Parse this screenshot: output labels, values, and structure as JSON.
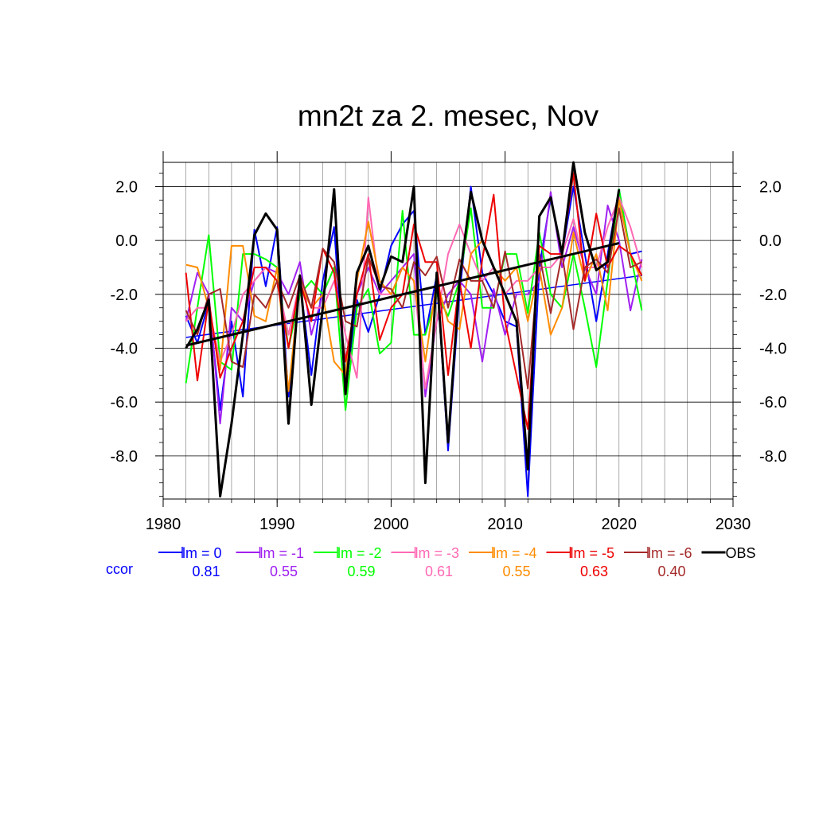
{
  "chart_data": {
    "type": "line",
    "title": "mn2t za 2. mesec, Nov",
    "xlim": [
      1980,
      2030
    ],
    "ylim": [
      -9.6,
      2.9
    ],
    "x_ticks": [
      1980,
      1990,
      2000,
      2010,
      2020,
      2030
    ],
    "x_tick_labels": [
      "1980",
      "1990",
      "2000",
      "2010",
      "2020",
      "2030"
    ],
    "y_ticks": [
      2,
      0,
      -2,
      -4,
      -6,
      -8
    ],
    "y_tick_labels": [
      "2.0",
      "0.0",
      "-2.0",
      "-4.0",
      "-6.0",
      "-8.0"
    ],
    "grid": true,
    "legend_position": "bottom",
    "ccor_label": "ccor",
    "x": [
      1982,
      1983,
      1984,
      1985,
      1986,
      1987,
      1988,
      1989,
      1990,
      1991,
      1992,
      1993,
      1994,
      1995,
      1996,
      1997,
      1998,
      1999,
      2000,
      2001,
      2002,
      2003,
      2004,
      2005,
      2006,
      2007,
      2008,
      2009,
      2010,
      2011,
      2012,
      2013,
      2014,
      2015,
      2016,
      2017,
      2018,
      2019,
      2020,
      2021,
      2022
    ],
    "series": [
      {
        "name": "lm = 0",
        "color": "#0000ff",
        "ccor": "0.81",
        "values": [
          -2.8,
          -3.8,
          -2.3,
          -6.3,
          -3.0,
          -5.8,
          0.4,
          -1.7,
          0.5,
          -5.8,
          -1.5,
          -5.0,
          -1.5,
          0.5,
          -5.6,
          -2.2,
          -3.4,
          -2.0,
          -0.2,
          0.6,
          1.1,
          -3.5,
          -1.3,
          -7.8,
          -2.0,
          2.0,
          -1.2,
          -2.0,
          -3.0,
          -3.2,
          -9.5,
          -1.0,
          1.6,
          -0.5,
          2.0,
          -0.5,
          -3.0,
          -0.5,
          1.9,
          -0.5,
          -0.4
        ],
        "trend": [
          -3.6,
          -1.3
        ]
      },
      {
        "name": "lm = -1",
        "color": "#a020f0",
        "ccor": "0.55",
        "values": [
          -3.0,
          -1.2,
          -2.0,
          -6.8,
          -2.5,
          -3.0,
          -1.5,
          -1.0,
          -1.2,
          -2.0,
          -0.8,
          -3.5,
          -2.0,
          -1.0,
          -4.5,
          -2.0,
          -1.0,
          -2.0,
          -1.5,
          -1.0,
          -0.5,
          -5.8,
          -3.0,
          -2.0,
          -1.5,
          -2.0,
          -4.5,
          -1.8,
          -3.5,
          -2.0,
          -2.0,
          -1.5,
          1.8,
          -1.0,
          0.5,
          -1.0,
          -2.0,
          1.3,
          0.0,
          -2.6,
          -0.7
        ]
      },
      {
        "name": "lm = -2",
        "color": "#00ff00",
        "ccor": "0.59",
        "values": [
          -5.3,
          -2.5,
          0.2,
          -4.5,
          -4.8,
          -0.5,
          -0.5,
          -0.7,
          -1.0,
          -4.0,
          -2.0,
          -1.5,
          -2.0,
          -1.0,
          -6.3,
          -2.5,
          -1.8,
          -4.2,
          -3.8,
          1.1,
          -3.5,
          -3.5,
          -2.0,
          -2.8,
          -1.5,
          1.2,
          -2.5,
          -2.5,
          -0.5,
          -0.5,
          -2.7,
          0.3,
          -2.0,
          -2.5,
          -0.5,
          -2.5,
          -4.7,
          -1.5,
          1.9,
          -0.5,
          -2.6
        ]
      },
      {
        "name": "lm = -3",
        "color": "#ff69b4",
        "ccor": "0.61",
        "values": [
          -3.0,
          -2.5,
          -2.5,
          -4.5,
          -3.5,
          -2.0,
          -1.5,
          -1.0,
          -1.5,
          -3.5,
          -1.5,
          -2.5,
          -2.5,
          -1.5,
          -3.5,
          -5.1,
          1.6,
          -2.0,
          -2.0,
          -1.0,
          -1.5,
          -5.5,
          -3.0,
          -0.5,
          0.6,
          -0.5,
          -1.5,
          -1.0,
          -2.0,
          -1.5,
          -1.5,
          -1.0,
          -1.0,
          -0.5,
          0.8,
          -1.0,
          -1.0,
          0.5,
          1.6,
          0.5,
          -1.0
        ]
      },
      {
        "name": "lm = -4",
        "color": "#ff8c00",
        "ccor": "0.55",
        "values": [
          -0.9,
          -1.0,
          -2.5,
          -4.8,
          -0.2,
          -0.2,
          -2.8,
          -3.0,
          -1.0,
          -5.6,
          -1.6,
          -2.5,
          -2.0,
          -4.5,
          -5.0,
          -1.5,
          0.7,
          -1.5,
          -2.0,
          -1.0,
          -1.5,
          -4.5,
          -1.5,
          -3.0,
          -3.3,
          -0.5,
          0.0,
          -1.0,
          -1.5,
          -1.0,
          -3.0,
          -1.0,
          -3.5,
          -2.5,
          0.3,
          -1.5,
          -0.5,
          -2.6,
          1.5,
          -0.5,
          -1.5
        ]
      },
      {
        "name": "lm = -5",
        "color": "#ee0000",
        "ccor": "0.63",
        "values": [
          -1.2,
          -5.2,
          -2.2,
          -5.1,
          -4.0,
          -3.0,
          -1.0,
          -1.0,
          -1.5,
          -4.0,
          -1.5,
          -3.0,
          -0.3,
          -1.2,
          -4.5,
          -2.0,
          -0.5,
          -3.7,
          -2.5,
          -2.0,
          0.6,
          -0.8,
          -0.8,
          -5.0,
          -1.5,
          -4.0,
          -0.7,
          1.7,
          -3.0,
          -5.0,
          -7.0,
          -0.2,
          -0.5,
          -0.5,
          2.5,
          -1.5,
          1.0,
          -1.0,
          -0.2,
          -0.5,
          -1.3
        ]
      },
      {
        "name": "lm = -6",
        "color": "#a52a2a",
        "ccor": "0.40",
        "values": [
          -2.6,
          -3.5,
          -2.0,
          -1.8,
          -4.5,
          -4.7,
          -2.0,
          -2.5,
          -1.5,
          -2.5,
          -1.3,
          -2.5,
          -0.3,
          -0.8,
          -3.0,
          -3.2,
          -0.6,
          -1.7,
          -1.8,
          -2.5,
          -0.8,
          -1.3,
          -0.6,
          -2.5,
          -0.7,
          -1.5,
          -1.5,
          -2.5,
          -0.4,
          -2.5,
          -5.5,
          -0.5,
          -2.7,
          -0.5,
          -3.3,
          -1.0,
          -0.7,
          -1.2,
          1.2,
          -1.0,
          -0.8
        ]
      },
      {
        "name": "OBS",
        "color": "#000000",
        "x": [
          1982,
          1983,
          1984,
          1985,
          1986,
          1987,
          1988,
          1989,
          1990,
          1991,
          1992,
          1993,
          1994,
          1995,
          1996,
          1997,
          1998,
          1999,
          2000,
          2001,
          2002,
          2003,
          2004,
          2005,
          2006,
          2007,
          2008,
          2009,
          2010,
          2011,
          2012,
          2013,
          2014,
          2015,
          2016,
          2017,
          2018,
          2019,
          2020
        ],
        "values": [
          -4.0,
          -3.3,
          -2.2,
          -9.5,
          -6.8,
          -3.5,
          0.2,
          1.0,
          0.4,
          -6.8,
          -1.3,
          -6.1,
          -2.5,
          1.9,
          -5.7,
          -1.2,
          -0.2,
          -1.8,
          -0.6,
          -0.8,
          2.0,
          -9.0,
          -1.2,
          -7.5,
          -1.5,
          1.8,
          0.0,
          -1.0,
          -2.0,
          -3.0,
          -8.5,
          0.9,
          1.6,
          -0.5,
          2.9,
          0.3,
          -1.1,
          -0.8,
          1.9
        ],
        "trend": [
          -3.9,
          -0.1
        ]
      }
    ]
  }
}
